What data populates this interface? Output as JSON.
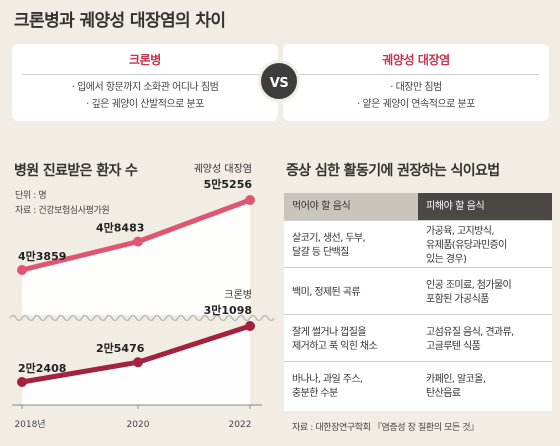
{
  "title": "크론병과 궤양성 대장염의 차이",
  "comparison": {
    "left": {
      "name": "크론병",
      "bullets": [
        "입에서 항문까지 소화관 어디나 침범",
        "깊은 궤양이 산발적으로 분포"
      ]
    },
    "vs": "VS",
    "right": {
      "name": "궤양성 대장염",
      "bullets": [
        "대장만 침범",
        "얕은 궤양이 연속적으로 분포"
      ]
    }
  },
  "chart_title": "병원 진료받은 환자 수",
  "chart_unit": "단위 : 명",
  "chart_source": "자료 : 건강보험심사평가원",
  "chart_data": {
    "type": "line",
    "title": "병원 진료받은 환자 수",
    "x": [
      "2018년",
      "2020",
      "2022"
    ],
    "series": [
      {
        "name": "궤양성 대장염",
        "values": [
          43859,
          48483,
          55256
        ],
        "value_labels": [
          "4만3859",
          "4만8483",
          "5만5256"
        ],
        "color": "#e05672"
      },
      {
        "name": "크론병",
        "values": [
          22408,
          25476,
          31098
        ],
        "value_labels": [
          "2만2408",
          "2만5476",
          "3만1098"
        ],
        "color": "#a3223e"
      }
    ],
    "ylim": [
      18000,
      60000
    ],
    "axis_break": true,
    "grid": false
  },
  "diet": {
    "title": "증상 심한 활동기에 권장하는 식이요법",
    "headers": [
      "먹어야 할 음식",
      "피해야 할 음식"
    ],
    "rows": [
      [
        "살코기, 생선, 두부,\n달걀 등 단백질",
        "가공육, 고지방식,\n유제품(유당과민증이\n있는 경우)"
      ],
      [
        "백미, 정제된 곡류",
        "인공 조미료, 첨가물이\n포함된 가공식품"
      ],
      [
        "잘게 썰거나 껍질을\n제거하고 푹 익힌 채소",
        "고섬유질 음식, 견과류,\n고글루텐 식품"
      ],
      [
        "바나나, 과일 주스,\n충분한 수분",
        "카페인, 알코올,\n탄산음료"
      ]
    ],
    "source": "자료 : 대한장연구학회 『염증성 장 질환의 모든 것』"
  }
}
